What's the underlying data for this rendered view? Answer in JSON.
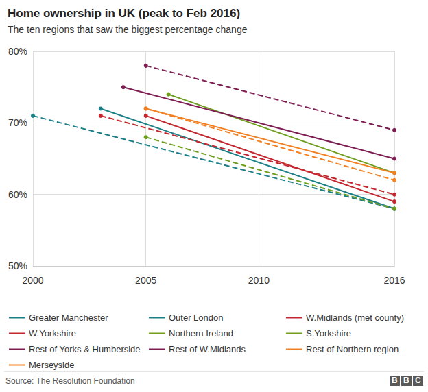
{
  "chart_data": {
    "type": "line",
    "title": "Home ownership in UK (peak to Feb 2016)",
    "subtitle": "The ten regions that saw the biggest percentage change",
    "source": "Source: The Resolution Foundation",
    "logo_text": "BBC",
    "xlim": [
      2000,
      2016
    ],
    "xticks": [
      2000,
      2005,
      2010,
      2016
    ],
    "ylim": [
      50,
      80
    ],
    "yticks": [
      {
        "value": 50,
        "label": "50%"
      },
      {
        "value": 60,
        "label": "60%"
      },
      {
        "value": 70,
        "label": "70%"
      },
      {
        "value": 80,
        "label": "80%"
      }
    ],
    "grid": true,
    "marker": "circle",
    "series": [
      {
        "name": "Greater Manchester",
        "color": "#1a7f86",
        "line_style": "solid",
        "x": [
          2003,
          2016
        ],
        "values": [
          72,
          58
        ]
      },
      {
        "name": "Outer London",
        "color": "#1a7f86",
        "line_style": "dashed",
        "x": [
          2000,
          2016
        ],
        "values": [
          71,
          58
        ]
      },
      {
        "name": "W.Midlands (met county)",
        "color": "#c4262e",
        "line_style": "solid",
        "x": [
          2005,
          2016
        ],
        "values": [
          71,
          59
        ]
      },
      {
        "name": "W.Yorkshire",
        "color": "#c4262e",
        "line_style": "dashed",
        "x": [
          2003,
          2016
        ],
        "values": [
          71,
          60
        ]
      },
      {
        "name": "Northern Ireland",
        "color": "#6e9e1e",
        "line_style": "solid",
        "x": [
          2006,
          2016
        ],
        "values": [
          74,
          63
        ]
      },
      {
        "name": "S.Yorkshire",
        "color": "#6e9e1e",
        "line_style": "dashed",
        "x": [
          2005,
          2016
        ],
        "values": [
          68,
          58
        ]
      },
      {
        "name": "Rest of Yorks & Humberside",
        "color": "#7d1d52",
        "line_style": "solid",
        "x": [
          2004,
          2016
        ],
        "values": [
          75,
          65
        ]
      },
      {
        "name": "Rest of W.Midlands",
        "color": "#7d1d52",
        "line_style": "dashed",
        "x": [
          2005,
          2016
        ],
        "values": [
          78,
          69
        ]
      },
      {
        "name": "Rest of Northern region",
        "color": "#f28022",
        "line_style": "solid",
        "x": [
          2005,
          2016
        ],
        "values": [
          72,
          63
        ]
      },
      {
        "name": "Merseyside",
        "color": "#f28022",
        "line_style": "dashed",
        "x": [
          2005,
          2016
        ],
        "values": [
          72,
          62
        ]
      }
    ]
  }
}
